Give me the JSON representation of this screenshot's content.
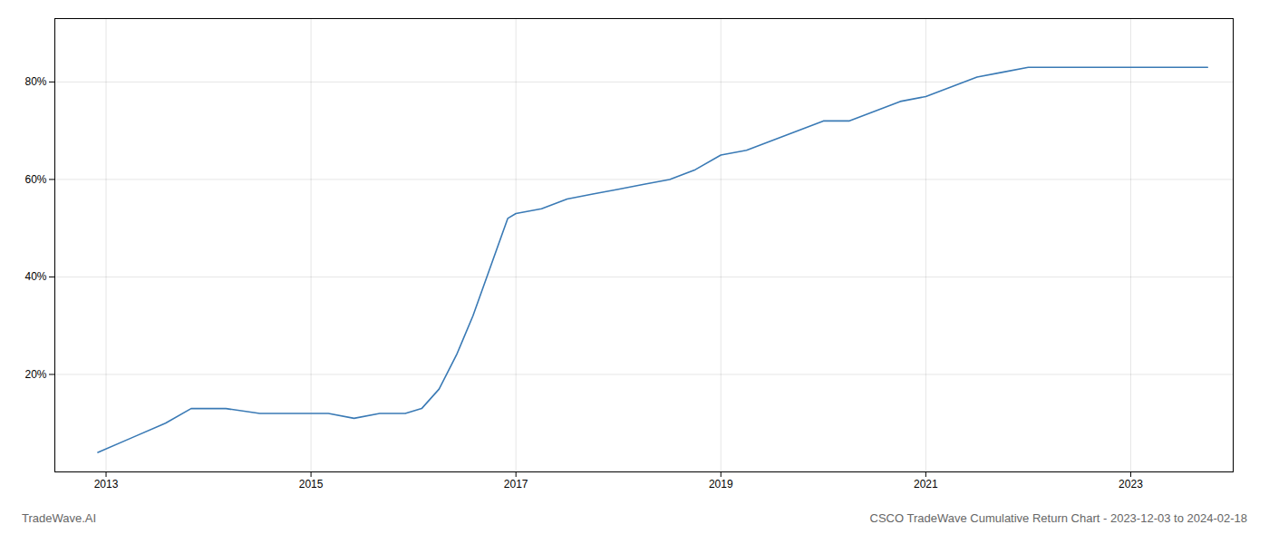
{
  "chart_data": {
    "type": "line",
    "title": "CSCO TradeWave Cumulative Return Chart - 2023-12-03 to 2024-02-18",
    "annotations": [
      "TradeWave.AI"
    ],
    "x": [
      2012.92,
      2013.25,
      2013.58,
      2013.83,
      2014.17,
      2014.5,
      2014.83,
      2015.0,
      2015.17,
      2015.42,
      2015.67,
      2015.92,
      2016.08,
      2016.25,
      2016.42,
      2016.58,
      2016.75,
      2016.92,
      2017.0,
      2017.25,
      2017.5,
      2017.75,
      2018.0,
      2018.25,
      2018.5,
      2018.75,
      2019.0,
      2019.25,
      2019.5,
      2019.75,
      2020.0,
      2020.25,
      2020.5,
      2020.75,
      2021.0,
      2021.25,
      2021.5,
      2021.75,
      2022.0,
      2022.25,
      2022.5,
      2022.75,
      2023.0,
      2023.25,
      2023.5,
      2023.75
    ],
    "values": [
      4,
      7,
      10,
      13,
      13,
      12,
      12,
      12,
      12,
      11,
      12,
      12,
      13,
      17,
      24,
      32,
      42,
      52,
      53,
      54,
      56,
      57,
      58,
      59,
      60,
      62,
      65,
      66,
      68,
      70,
      72,
      72,
      74,
      76,
      77,
      79,
      81,
      82,
      83,
      83,
      83,
      83,
      83,
      83,
      83,
      83
    ],
    "color": "#3a7ab5",
    "xlim": [
      2012.5,
      2024.0
    ],
    "ylim": [
      0,
      93
    ],
    "xticks": [
      2013,
      2015,
      2017,
      2019,
      2021,
      2023
    ],
    "yticks": [
      {
        "value": 20,
        "label": "20%"
      },
      {
        "value": 40,
        "label": "40%"
      },
      {
        "value": 60,
        "label": "60%"
      },
      {
        "value": 80,
        "label": "80%"
      }
    ],
    "grid": true
  }
}
